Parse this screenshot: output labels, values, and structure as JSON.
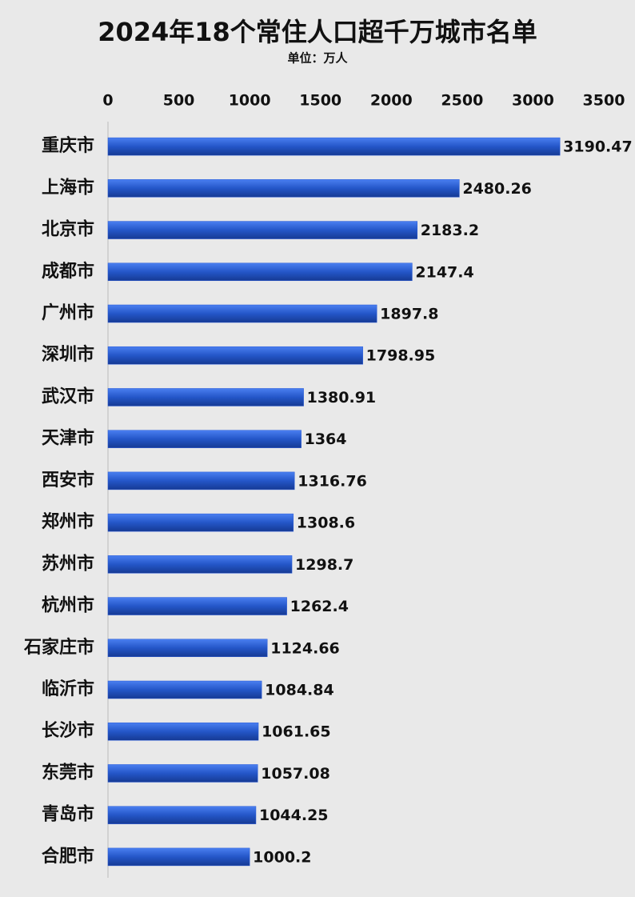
{
  "chart_data": {
    "type": "barh",
    "title": "2024年18个常住人口超千万城市名单",
    "subtitle": "单位：万人",
    "categories": [
      "重庆市",
      "上海市",
      "北京市",
      "成都市",
      "广州市",
      "深圳市",
      "武汉市",
      "天津市",
      "西安市",
      "郑州市",
      "苏州市",
      "杭州市",
      "石家庄市",
      "临沂市",
      "长沙市",
      "东莞市",
      "青岛市",
      "合肥市"
    ],
    "values": [
      3190.47,
      2480.26,
      2183.2,
      2147.4,
      1897.8,
      1798.95,
      1380.91,
      1364,
      1316.76,
      1308.6,
      1298.7,
      1262.4,
      1124.66,
      1084.84,
      1061.65,
      1057.08,
      1044.25,
      1000.2
    ],
    "color": "#2a5bd7",
    "xlim": [
      0,
      3500
    ],
    "xticks": [
      0,
      500,
      1000,
      1500,
      2000,
      2500,
      3000,
      3500
    ],
    "grid": false
  }
}
